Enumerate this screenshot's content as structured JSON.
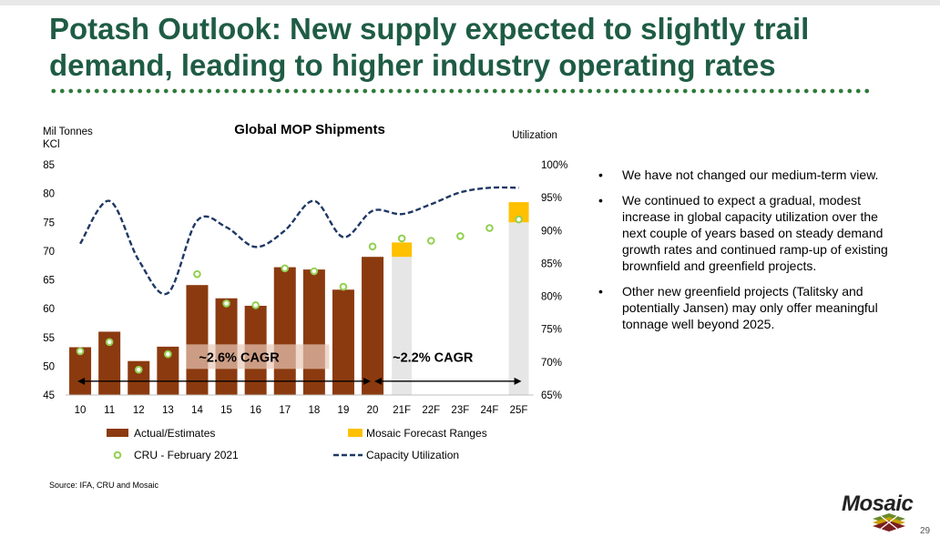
{
  "slide": {
    "title": "Potash Outlook: New supply expected to slightly trail demand, leading to higher industry operating rates",
    "source": "Source: IFA, CRU and Mosaic",
    "page_number": "29",
    "logo_text": "Mosaic"
  },
  "bullets": [
    "We have not changed our medium-term view.",
    "We continued to expect a gradual, modest increase in global capacity utilization over the next couple of years based on steady demand growth rates and continued ramp-up of existing brownfield and greenfield projects.",
    "Other new greenfield projects (Talitsky and potentially Jansen) may only offer meaningful tonnage well beyond 2025."
  ],
  "colors": {
    "title": "#1f5c45",
    "bar": "#8b3a0f",
    "forecast": "#ffc000",
    "forecast_bg": "#e6e6e6",
    "cru": "#92d050",
    "line": "#1f3864"
  },
  "chart_data": {
    "type": "bar",
    "title": "Global MOP Shipments",
    "ylabel_left": "Mil Tonnes KCl",
    "ylabel_right": "Utilization",
    "categories": [
      "10",
      "11",
      "12",
      "13",
      "14",
      "15",
      "16",
      "17",
      "18",
      "19",
      "20",
      "21F",
      "22F",
      "23F",
      "24F",
      "25F"
    ],
    "ylim": [
      45,
      85
    ],
    "yticks": [
      "45",
      "50",
      "55",
      "60",
      "65",
      "70",
      "75",
      "80",
      "85"
    ],
    "ylim_right": [
      65,
      100
    ],
    "yticks_right": [
      "65%",
      "70%",
      "75%",
      "80%",
      "85%",
      "90%",
      "95%",
      "100%"
    ],
    "series": [
      {
        "name": "Actual/Estimates",
        "type": "bar",
        "values": [
          53.3,
          56.0,
          50.9,
          53.4,
          64.1,
          61.8,
          60.5,
          67.2,
          66.8,
          63.3,
          69.0,
          null,
          null,
          null,
          null,
          null
        ]
      },
      {
        "name": "Mosaic Forecast Ranges",
        "type": "range",
        "values": [
          null,
          null,
          null,
          null,
          null,
          null,
          null,
          null,
          null,
          null,
          null,
          [
            69.0,
            71.5
          ],
          null,
          null,
          null,
          [
            75.0,
            78.5
          ]
        ]
      },
      {
        "name": "CRU - February 2021",
        "type": "scatter",
        "values": [
          52.6,
          54.2,
          49.4,
          52.1,
          66.0,
          60.9,
          60.6,
          67.0,
          66.5,
          63.8,
          70.8,
          72.2,
          71.8,
          72.6,
          74.0,
          75.5
        ]
      },
      {
        "name": "Capacity Utilization",
        "type": "line",
        "axis": "right",
        "values": [
          88.0,
          94.5,
          85.5,
          80.5,
          91.5,
          90.5,
          87.5,
          90.0,
          94.5,
          89.0,
          93.0,
          92.5,
          94.0,
          95.8,
          96.5,
          96.5
        ]
      }
    ],
    "annotations": [
      {
        "label": "~2.6% CAGR",
        "from": "10",
        "to": "20"
      },
      {
        "label": "~2.2% CAGR",
        "from": "20",
        "to": "25F"
      }
    ],
    "legend": [
      {
        "label": "Actual/Estimates",
        "kind": "bar"
      },
      {
        "label": "Mosaic Forecast Ranges",
        "kind": "range"
      },
      {
        "label": "CRU - February 2021",
        "kind": "scatter"
      },
      {
        "label": "Capacity Utilization",
        "kind": "line"
      }
    ],
    "legend_position": "bottom"
  }
}
